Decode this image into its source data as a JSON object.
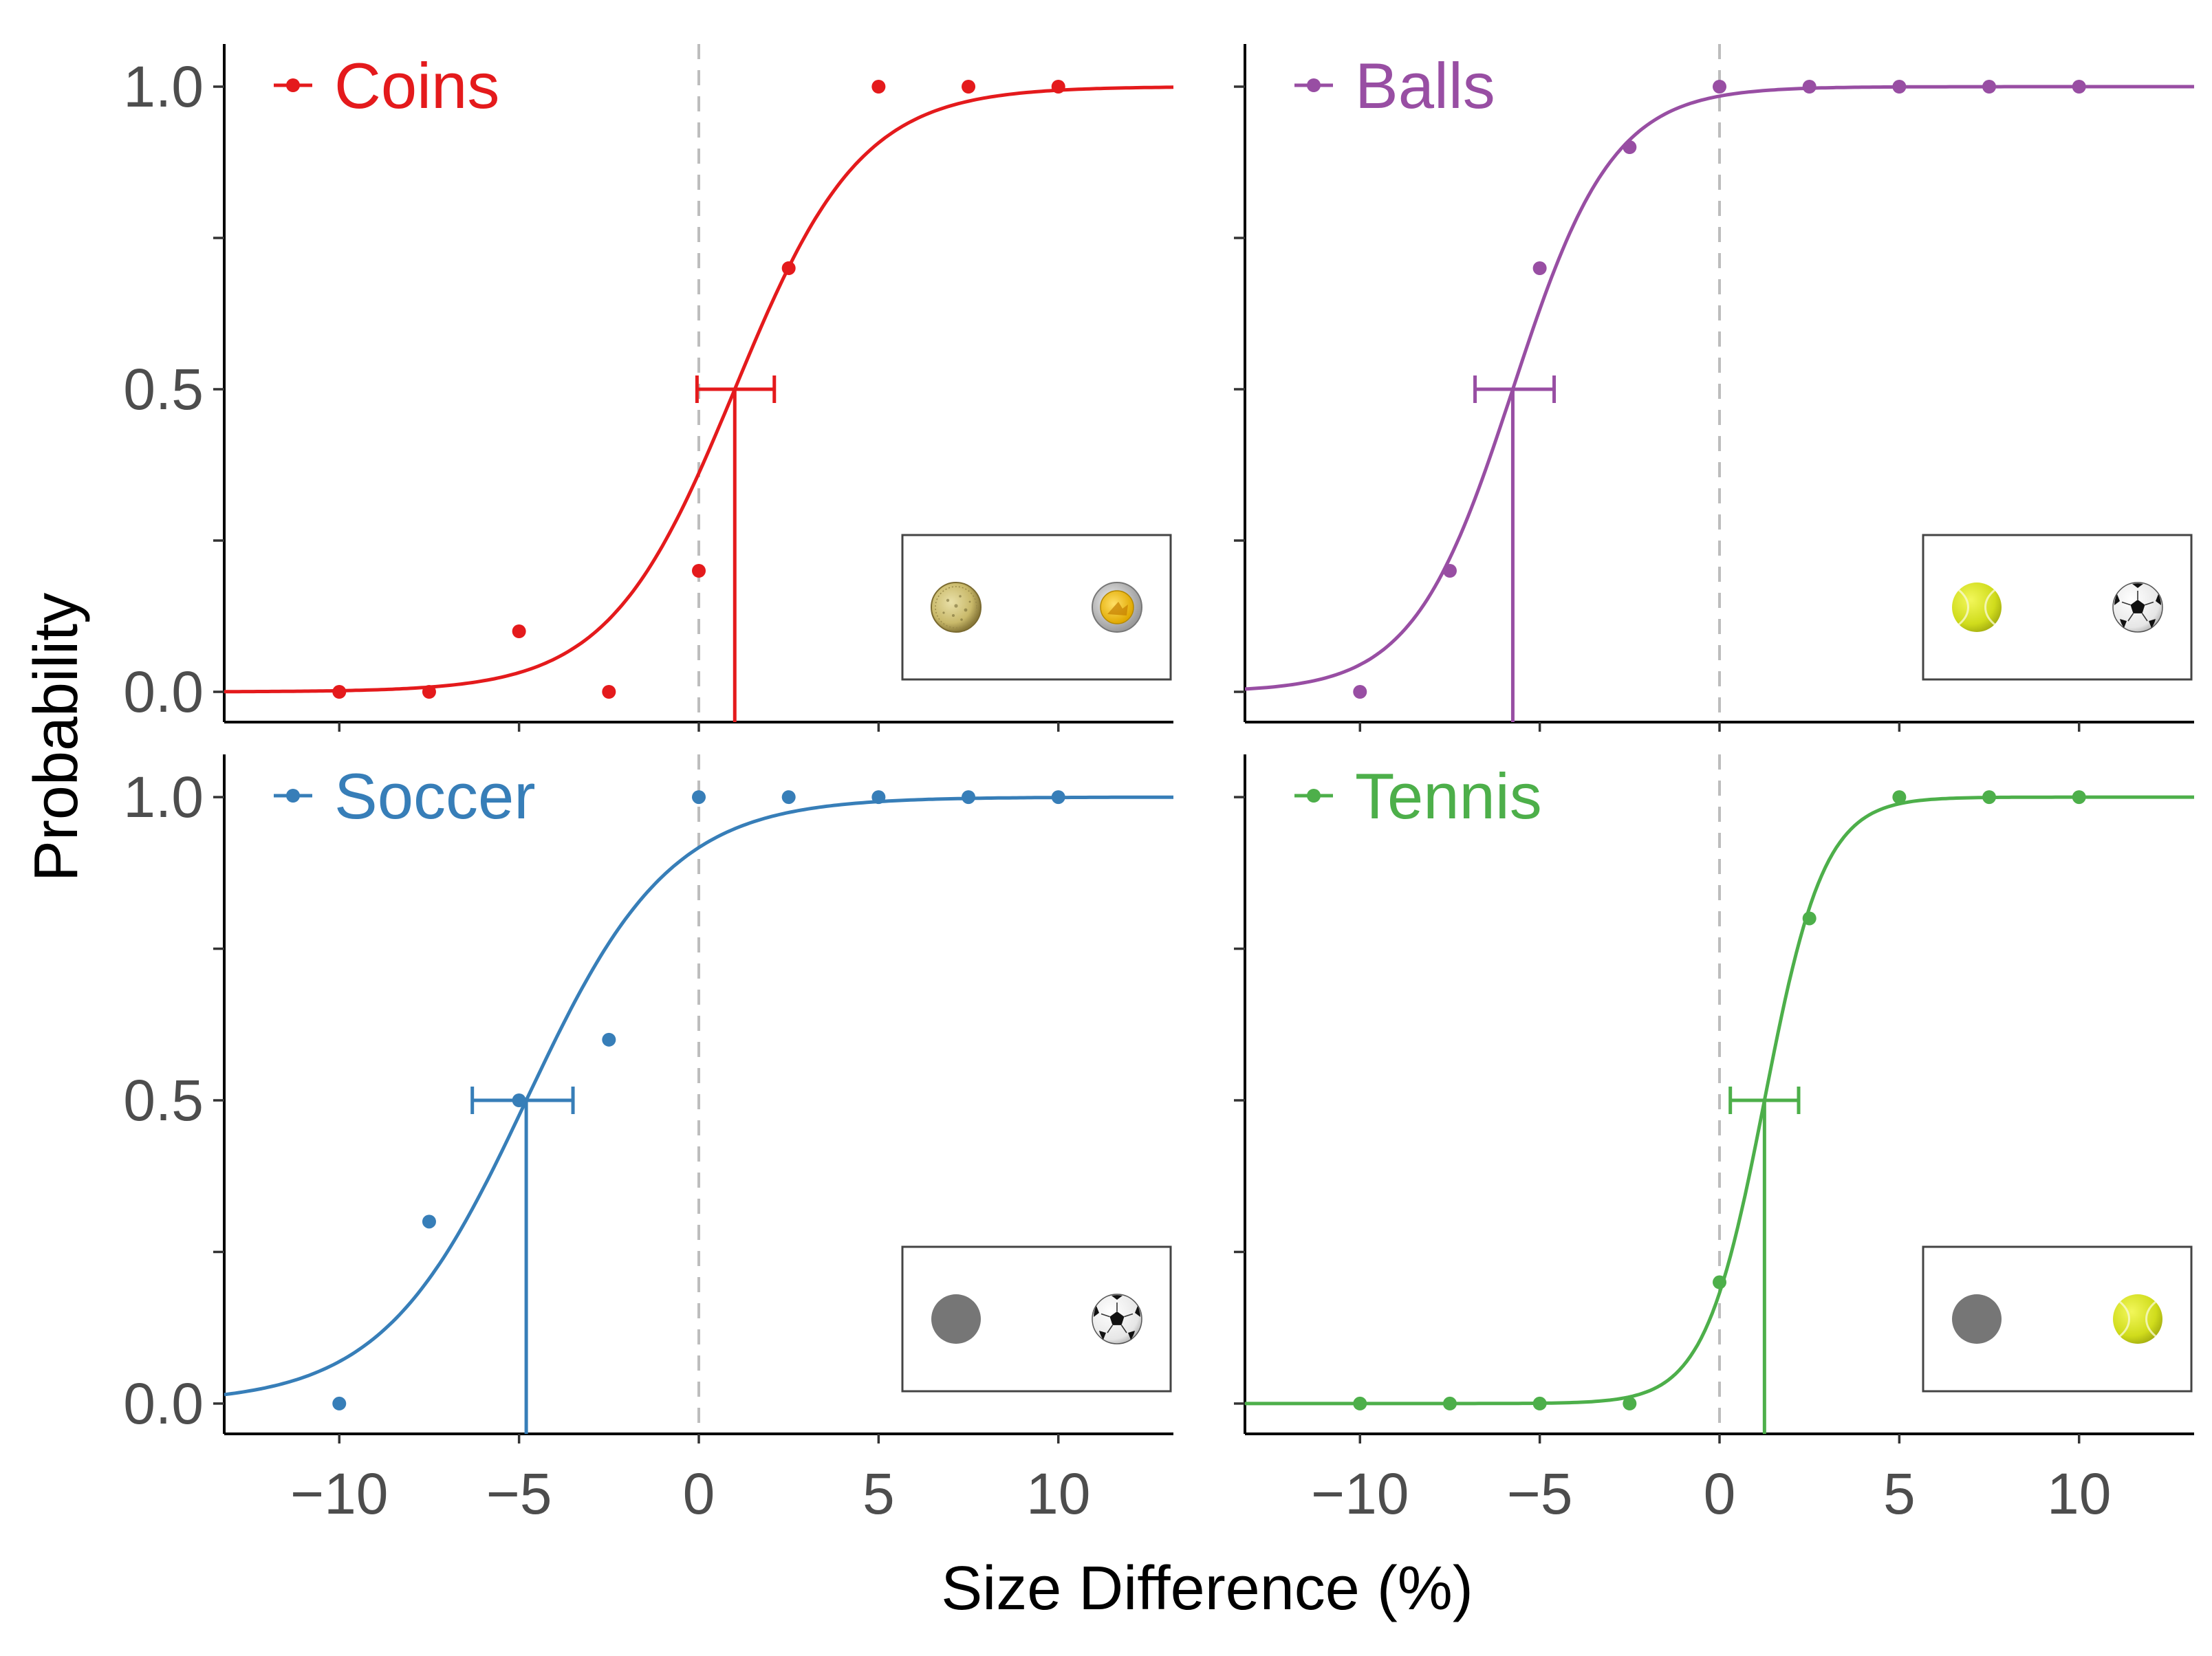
{
  "chart_data": {
    "type": "scatter",
    "layout": "2x2 facet grid with shared axes",
    "xlabel": "Size Difference (%)",
    "ylabel": "Probability",
    "xlim": [
      -13.2,
      13.2
    ],
    "ylim": [
      -0.05,
      1.05
    ],
    "x_ticks": [
      -10,
      -5,
      0,
      5,
      10
    ],
    "x_tick_labels": [
      "−10",
      "−5",
      "0",
      "5",
      "10"
    ],
    "y_ticks": [
      0,
      0.5,
      1
    ],
    "y_tick_labels": [
      "0.0",
      "0.5",
      "1.0"
    ],
    "reference_line_x": 0,
    "grid": false,
    "legend_position": "top-left of each panel",
    "panels": [
      {
        "name": "Coins",
        "color": "#e41a1c",
        "x": [
          -10,
          -7.5,
          -5,
          -2.5,
          0,
          2.5,
          5,
          7.5,
          10
        ],
        "y": [
          0,
          0,
          0.1,
          0,
          0.2,
          0.7,
          1,
          1,
          1
        ],
        "fit": {
          "midpoint": 1.0,
          "slope": 0.57
        },
        "pse": {
          "x": 1.0,
          "y": 0.5,
          "ci": [
            -0.05,
            2.1
          ]
        },
        "inset": {
          "left_icon": "gold-coin-icon",
          "right_icon": "gold-silver-coin-icon"
        }
      },
      {
        "name": "Balls",
        "color": "#984ea3",
        "x": [
          -10,
          -7.5,
          -5,
          -2.5,
          0,
          2.5,
          5,
          7.5,
          10
        ],
        "y": [
          0,
          0.2,
          0.7,
          0.9,
          1,
          1,
          1,
          1,
          1
        ],
        "fit": {
          "midpoint": -5.75,
          "slope": 0.72
        },
        "pse": {
          "x": -5.75,
          "y": 0.5,
          "ci": [
            -6.8,
            -4.6
          ]
        },
        "inset": {
          "left_icon": "tennis-ball-icon",
          "right_icon": "soccer-ball-icon"
        }
      },
      {
        "name": "Soccer",
        "color": "#377eb8",
        "x": [
          -10,
          -7.5,
          -5,
          -2.5,
          0,
          2.5,
          5,
          7.5,
          10
        ],
        "y": [
          0,
          0.3,
          0.5,
          0.6,
          1,
          1,
          1,
          1,
          1
        ],
        "fit": {
          "midpoint": -4.8,
          "slope": 0.5
        },
        "pse": {
          "x": -4.8,
          "y": 0.5,
          "ci": [
            -6.3,
            -3.5
          ]
        },
        "inset": {
          "left_icon": "gray-disk-icon",
          "right_icon": "soccer-ball-icon"
        }
      },
      {
        "name": "Tennis",
        "color": "#4daf4a",
        "x": [
          -10,
          -7.5,
          -5,
          -2.5,
          0,
          2.5,
          5,
          7.5,
          10
        ],
        "y": [
          0,
          0,
          0,
          0,
          0.2,
          0.8,
          1,
          1,
          1
        ],
        "fit": {
          "midpoint": 1.25,
          "slope": 1.2
        },
        "pse": {
          "x": 1.25,
          "y": 0.5,
          "ci": [
            0.3,
            2.2
          ]
        },
        "inset": {
          "left_icon": "gray-disk-icon",
          "right_icon": "tennis-ball-icon"
        }
      }
    ]
  }
}
